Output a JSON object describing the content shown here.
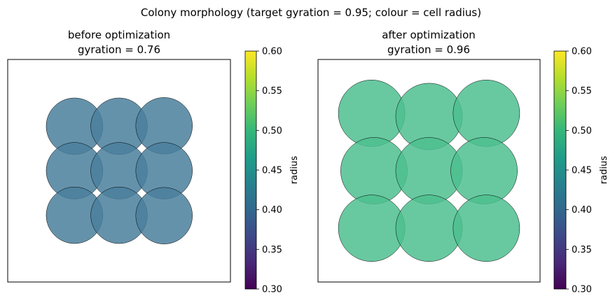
{
  "figure": {
    "title": "Colony morphology (target gyration = 0.95; colour = cell radius)"
  },
  "colormap": {
    "name": "viridis",
    "stops": [
      "#440154",
      "#482878",
      "#3e4989",
      "#31688e",
      "#26828e",
      "#1f9e89",
      "#35b779",
      "#6ece58",
      "#b5de2b",
      "#fde725"
    ]
  },
  "chart_data": [
    {
      "type": "scatter",
      "title_line1": "before optimization",
      "title_line2": "gyration = 0.76",
      "colorbar_label": "radius",
      "colorbar_range": [
        0.3,
        0.6
      ],
      "colorbar_ticks": [
        "0.30",
        "0.35",
        "0.40",
        "0.45",
        "0.50",
        "0.55",
        "0.60"
      ],
      "xlim": [
        -2.4,
        2.4
      ],
      "ylim": [
        -2.4,
        2.4
      ],
      "axis_ticks_visible": false,
      "cell_color": "#4a7f9c",
      "cells": [
        {
          "x": -0.96,
          "y": 0.96,
          "r": 0.61
        },
        {
          "x": 0.0,
          "y": 0.96,
          "r": 0.61
        },
        {
          "x": 0.97,
          "y": 0.97,
          "r": 0.61
        },
        {
          "x": -0.96,
          "y": 0.0,
          "r": 0.61
        },
        {
          "x": 0.0,
          "y": 0.0,
          "r": 0.61
        },
        {
          "x": 0.97,
          "y": 0.0,
          "r": 0.61
        },
        {
          "x": -0.96,
          "y": -0.96,
          "r": 0.61
        },
        {
          "x": 0.0,
          "y": -0.96,
          "r": 0.61
        },
        {
          "x": 0.97,
          "y": -0.97,
          "r": 0.61
        }
      ]
    },
    {
      "type": "scatter",
      "title_line1": "after optimization",
      "title_line2": "gyration = 0.96",
      "colorbar_label": "radius",
      "colorbar_range": [
        0.3,
        0.6
      ],
      "colorbar_ticks": [
        "0.30",
        "0.35",
        "0.40",
        "0.45",
        "0.50",
        "0.55",
        "0.60"
      ],
      "xlim": [
        -2.4,
        2.4
      ],
      "ylim": [
        -2.4,
        2.4
      ],
      "axis_ticks_visible": false,
      "cell_color": "#4dbf8f",
      "cells": [
        {
          "x": -1.24,
          "y": 1.24,
          "r": 0.72
        },
        {
          "x": 0.0,
          "y": 1.17,
          "r": 0.72
        },
        {
          "x": 1.24,
          "y": 1.24,
          "r": 0.72
        },
        {
          "x": -1.19,
          "y": 0.0,
          "r": 0.72
        },
        {
          "x": 0.0,
          "y": 0.0,
          "r": 0.72
        },
        {
          "x": 1.19,
          "y": 0.0,
          "r": 0.72
        },
        {
          "x": -1.24,
          "y": -1.24,
          "r": 0.72
        },
        {
          "x": 0.0,
          "y": -1.24,
          "r": 0.72
        },
        {
          "x": 1.24,
          "y": -1.24,
          "r": 0.72
        }
      ]
    }
  ]
}
